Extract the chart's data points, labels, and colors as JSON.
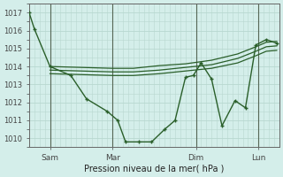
{
  "background_color": "#d4eeea",
  "grid_color": "#b8d8d0",
  "line_color": "#2a5f2a",
  "title": "Pression niveau de la mer( hPa )",
  "ylim": [
    1009.5,
    1017.5
  ],
  "yticks": [
    1010,
    1011,
    1012,
    1013,
    1014,
    1015,
    1016,
    1017
  ],
  "xlim": [
    0,
    96
  ],
  "day_ticks": [
    8,
    32,
    64,
    88
  ],
  "day_labels": [
    "Sam",
    "Mar",
    "Dim",
    "Lun"
  ],
  "vert_lines": [
    8,
    32,
    64,
    88
  ],
  "series_main": {
    "x": [
      0,
      2,
      8,
      16,
      22,
      30,
      34,
      37,
      42,
      47,
      52,
      56,
      60,
      63,
      66,
      70,
      74,
      79,
      83,
      87,
      91,
      95
    ],
    "y": [
      1017.0,
      1016.1,
      1014.0,
      1013.5,
      1012.2,
      1011.5,
      1011.0,
      1009.8,
      1009.8,
      1009.8,
      1010.5,
      1011.0,
      1013.4,
      1013.5,
      1014.2,
      1013.3,
      1010.7,
      1012.1,
      1011.7,
      1015.2,
      1015.5,
      1015.3
    ]
  },
  "series_smooth": [
    {
      "x": [
        8,
        20,
        32,
        40,
        50,
        60,
        70,
        80,
        87,
        91,
        95
      ],
      "y": [
        1014.0,
        1013.95,
        1013.9,
        1013.9,
        1014.05,
        1014.15,
        1014.35,
        1014.7,
        1015.1,
        1015.35,
        1015.4
      ]
    },
    {
      "x": [
        8,
        20,
        32,
        40,
        50,
        60,
        70,
        80,
        87,
        91,
        95
      ],
      "y": [
        1013.8,
        1013.75,
        1013.7,
        1013.7,
        1013.8,
        1013.95,
        1014.1,
        1014.45,
        1014.85,
        1015.1,
        1015.15
      ]
    },
    {
      "x": [
        8,
        20,
        32,
        40,
        50,
        60,
        70,
        80,
        87,
        91,
        95
      ],
      "y": [
        1013.6,
        1013.55,
        1013.5,
        1013.5,
        1013.6,
        1013.75,
        1013.9,
        1014.2,
        1014.6,
        1014.85,
        1014.9
      ]
    }
  ]
}
